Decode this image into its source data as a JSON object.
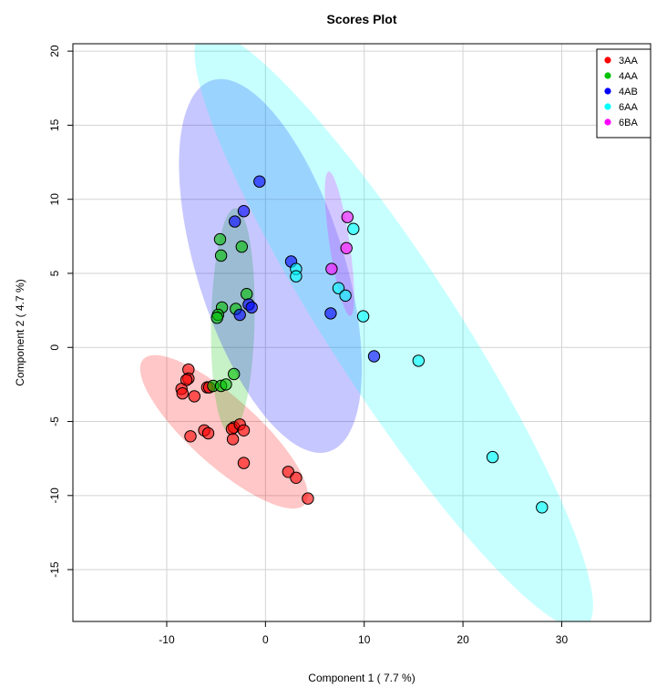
{
  "chart_data": {
    "type": "scatter",
    "title": "Scores Plot",
    "xlabel": "Component 1 ( 7.7 %)",
    "ylabel": "Component 2 ( 4.7 %)",
    "xlim": [
      -19.5,
      39
    ],
    "ylim": [
      -18.5,
      20.5
    ],
    "x_ticks": [
      -10,
      0,
      10,
      20,
      30
    ],
    "y_ticks": [
      -15,
      -10,
      -5,
      0,
      5,
      10,
      15,
      20
    ],
    "grid": true,
    "legend_position": "top-right",
    "series": [
      {
        "name": "3AA",
        "color": "#ff0000",
        "ellipse": {
          "cx": -4.2,
          "cy": -5.7,
          "rx": 9.6,
          "ry": 2.6,
          "angle_deg": -29
        },
        "points": [
          [
            -7.8,
            -1.5
          ],
          [
            -7.8,
            -2.1
          ],
          [
            -8.0,
            -2.2
          ],
          [
            -8.5,
            -2.8
          ],
          [
            -8.4,
            -3.1
          ],
          [
            -7.2,
            -3.3
          ],
          [
            -5.9,
            -2.7
          ],
          [
            -5.7,
            -2.7
          ],
          [
            -6.2,
            -5.6
          ],
          [
            -5.8,
            -5.8
          ],
          [
            -7.6,
            -6.0
          ],
          [
            -3.2,
            -5.4
          ],
          [
            -3.4,
            -5.5
          ],
          [
            -2.6,
            -5.2
          ],
          [
            -2.2,
            -5.6
          ],
          [
            -3.3,
            -6.2
          ],
          [
            -2.2,
            -7.8
          ],
          [
            2.3,
            -8.4
          ],
          [
            3.1,
            -8.8
          ],
          [
            4.3,
            -10.2
          ]
        ]
      },
      {
        "name": "4AA",
        "color": "#00c000",
        "ellipse": {
          "cx": -3.3,
          "cy": 1.8,
          "rx": 7.6,
          "ry": 2.2,
          "angle_deg": 88
        },
        "points": [
          [
            -4.6,
            7.3
          ],
          [
            -2.4,
            6.8
          ],
          [
            -4.5,
            6.2
          ],
          [
            -1.9,
            3.6
          ],
          [
            -4.4,
            2.7
          ],
          [
            -3.0,
            2.6
          ],
          [
            -4.8,
            2.2
          ],
          [
            -4.9,
            2.0
          ],
          [
            -3.2,
            -1.8
          ],
          [
            -5.3,
            -2.6
          ],
          [
            -4.5,
            -2.6
          ],
          [
            -4.0,
            -2.5
          ]
        ]
      },
      {
        "name": "4AB",
        "color": "#0000ff",
        "ellipse": {
          "cx": 0.5,
          "cy": 5.5,
          "rx": 14.0,
          "ry": 7.0,
          "angle_deg": -60
        },
        "points": [
          [
            -0.6,
            11.2
          ],
          [
            -2.2,
            9.2
          ],
          [
            -3.1,
            8.5
          ],
          [
            2.6,
            5.8
          ],
          [
            -1.7,
            2.9
          ],
          [
            -1.4,
            2.7
          ],
          [
            -2.6,
            2.2
          ],
          [
            6.6,
            2.3
          ],
          [
            11.0,
            -0.6
          ]
        ]
      },
      {
        "name": "6AA",
        "color": "#00ffff",
        "ellipse": {
          "cx": 13.0,
          "cy": 1.2,
          "rx": 28.0,
          "ry": 5.5,
          "angle_deg": -45
        },
        "points": [
          [
            8.9,
            8.0
          ],
          [
            3.1,
            5.3
          ],
          [
            3.1,
            4.8
          ],
          [
            7.4,
            4.0
          ],
          [
            8.1,
            3.5
          ],
          [
            9.9,
            2.1
          ],
          [
            15.5,
            -0.9
          ],
          [
            23.0,
            -7.4
          ],
          [
            28.0,
            -10.8
          ]
        ]
      },
      {
        "name": "6BA",
        "color": "#ff00ff",
        "ellipse": {
          "cx": 7.5,
          "cy": 7.0,
          "rx": 5.0,
          "ry": 1.0,
          "angle_deg": -77
        },
        "points": [
          [
            8.3,
            8.8
          ],
          [
            8.2,
            6.7
          ],
          [
            6.7,
            5.3
          ]
        ]
      }
    ]
  }
}
